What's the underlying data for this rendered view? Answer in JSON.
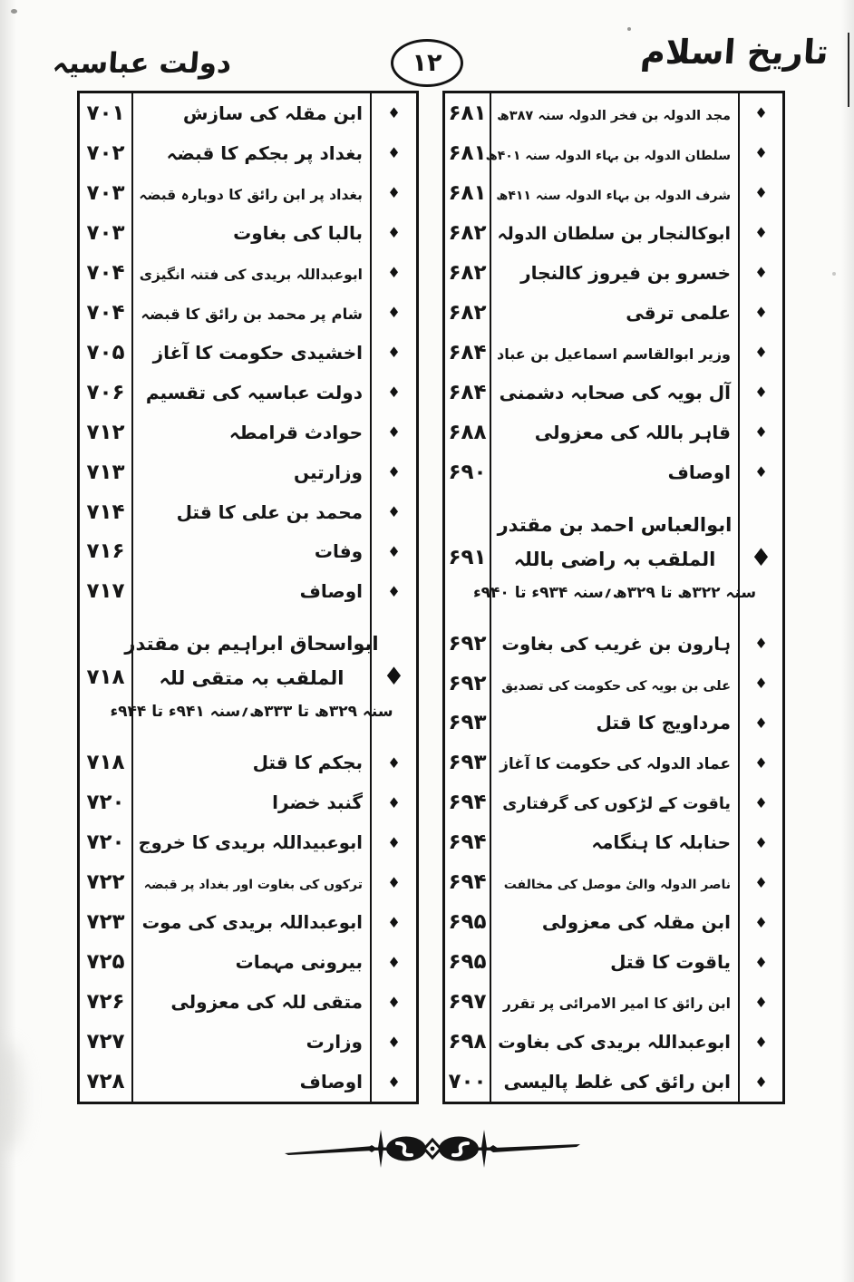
{
  "header": {
    "right_title": "تاریخ اسلام",
    "left_title": "دولت عباسیہ",
    "page_number": "۱۲"
  },
  "columns": {
    "right": {
      "entries": [
        {
          "text": "مجد الدولہ بن فخر الدولہ سنہ ۳۸۷ھ",
          "page": "۶۸۱",
          "bullet": "small"
        },
        {
          "text": "سلطان الدولہ بن بہاء الدولہ سنہ ۴۰۱ھ",
          "page": "۶۸۱",
          "bullet": "small"
        },
        {
          "text": "شرف الدولہ بن بہاء الدولہ سنہ ۴۱۱ھ",
          "page": "۶۸۱",
          "bullet": "small"
        },
        {
          "text": "ابوکالنجار بن سلطان الدولہ",
          "page": "۶۸۲",
          "bullet": "small"
        },
        {
          "text": "خسرو بن فیروز کالنجار",
          "page": "۶۸۲",
          "bullet": "small"
        },
        {
          "text": "علمی ترقی",
          "page": "۶۸۲",
          "bullet": "small"
        },
        {
          "text": "وزیر ابوالقاسم اسماعیل بن عباد",
          "page": "۶۸۴",
          "bullet": "small"
        },
        {
          "text": "آل بویہ کی صحابہ دشمنی",
          "page": "۶۸۴",
          "bullet": "small"
        },
        {
          "text": "قاہر باللہ کی معزولی",
          "page": "۶۸۸",
          "bullet": "small"
        },
        {
          "text": "اوصاف",
          "page": "۶۹۰",
          "bullet": "small"
        },
        {
          "lines": [
            "ابوالعباس احمد بن مقتدر",
            "الملقب بہ راضی باللہ",
            "سنہ ۳۲۲ھ تا ۳۲۹ھ؍سنہ ۹۳۴ء تا ۹۴۰ء"
          ],
          "page": "۶۹۱",
          "bullet": "large"
        },
        {
          "text": "ہارون بن غریب کی بغاوت",
          "page": "۶۹۲",
          "bullet": "small"
        },
        {
          "text": "علی بن بویہ کی حکومت کی تصدیق",
          "page": "۶۹۲",
          "bullet": "small"
        },
        {
          "text": "مرداویج کا قتل",
          "page": "۶۹۳",
          "bullet": "small"
        },
        {
          "text": "عماد الدولہ کی حکومت کا آغاز",
          "page": "۶۹۳",
          "bullet": "small"
        },
        {
          "text": "یاقوت کے لڑکوں کی گرفتاری",
          "page": "۶۹۴",
          "bullet": "small"
        },
        {
          "text": "حنابلہ کا ہنگامہ",
          "page": "۶۹۴",
          "bullet": "small"
        },
        {
          "text": "ناصر الدولہ والیٔ موصل کی مخالفت",
          "page": "۶۹۴",
          "bullet": "small"
        },
        {
          "text": "ابن مقلہ کی معزولی",
          "page": "۶۹۵",
          "bullet": "small"
        },
        {
          "text": "یاقوت کا قتل",
          "page": "۶۹۵",
          "bullet": "small"
        },
        {
          "text": "ابن رائق کا امیر الامرائی پر تقرر",
          "page": "۶۹۷",
          "bullet": "small"
        },
        {
          "text": "ابوعبداللہ بریدی کی بغاوت",
          "page": "۶۹۸",
          "bullet": "small"
        },
        {
          "text": "ابن رائق کی غلط پالیسی",
          "page": "۷۰۰",
          "bullet": "small"
        }
      ]
    },
    "left": {
      "entries": [
        {
          "text": "ابن مقلہ کی سازش",
          "page": "۷۰۱",
          "bullet": "small"
        },
        {
          "text": "بغداد پر بجکم کا قبضہ",
          "page": "۷۰۲",
          "bullet": "small"
        },
        {
          "text": "بغداد پر ابن رائق کا دوبارہ قبضہ",
          "page": "۷۰۳",
          "bullet": "small"
        },
        {
          "text": "بالبا کی بغاوت",
          "page": "۷۰۳",
          "bullet": "small"
        },
        {
          "text": "ابوعبداللہ بریدی کی فتنہ انگیزی",
          "page": "۷۰۴",
          "bullet": "small"
        },
        {
          "text": "شام پر محمد بن رائق کا قبضہ",
          "page": "۷۰۴",
          "bullet": "small"
        },
        {
          "text": "اخشیدی حکومت کا آغاز",
          "page": "۷۰۵",
          "bullet": "small"
        },
        {
          "text": "دولت عباسیہ کی تقسیم",
          "page": "۷۰۶",
          "bullet": "small"
        },
        {
          "text": "حوادث قرامطہ",
          "page": "۷۱۲",
          "bullet": "small"
        },
        {
          "text": "وزارتیں",
          "page": "۷۱۳",
          "bullet": "small"
        },
        {
          "text": "محمد بن علی کا قتل",
          "page": "۷۱۴",
          "bullet": "small"
        },
        {
          "text": "وفات",
          "page": "۷۱۶",
          "bullet": "small"
        },
        {
          "text": "اوصاف",
          "page": "۷۱۷",
          "bullet": "small"
        },
        {
          "lines": [
            "ابواسحاق ابراہیم بن مقتدر",
            "الملقب بہ متقی للہ",
            "سنہ ۳۲۹ھ تا ۳۳۳ھ؍سنہ ۹۴۱ء تا ۹۴۴ء"
          ],
          "page": "۷۱۸",
          "bullet": "large"
        },
        {
          "text": "بجکم کا قتل",
          "page": "۷۱۸",
          "bullet": "small"
        },
        {
          "text": "گنبد خضرا",
          "page": "۷۲۰",
          "bullet": "small"
        },
        {
          "text": "ابوعبیداللہ بریدی کا خروج",
          "page": "۷۲۰",
          "bullet": "small"
        },
        {
          "text": "ترکوں کی بغاوت اور بغداد پر قبضہ",
          "page": "۷۲۲",
          "bullet": "small"
        },
        {
          "text": "ابوعبداللہ بریدی کی موت",
          "page": "۷۲۳",
          "bullet": "small"
        },
        {
          "text": "بیرونی مہمات",
          "page": "۷۲۵",
          "bullet": "small"
        },
        {
          "text": "متقی للہ کی معزولی",
          "page": "۷۲۶",
          "bullet": "small"
        },
        {
          "text": "وزارت",
          "page": "۷۲۷",
          "bullet": "small"
        },
        {
          "text": "اوصاف",
          "page": "۷۲۸",
          "bullet": "small"
        }
      ]
    }
  }
}
